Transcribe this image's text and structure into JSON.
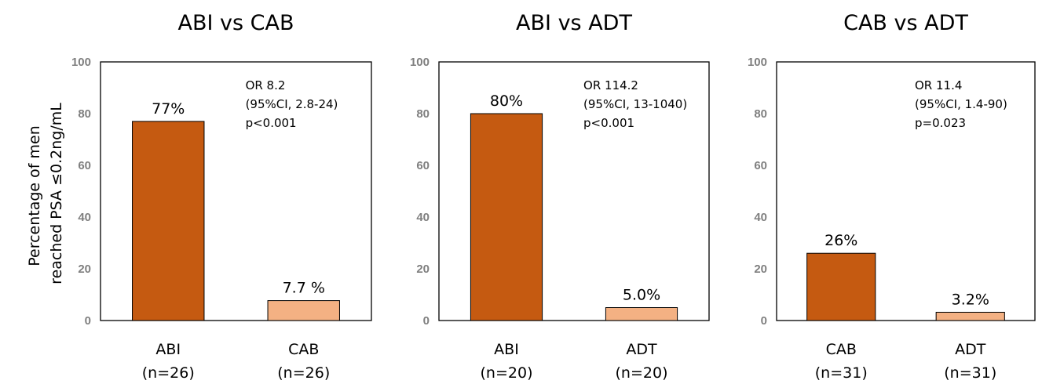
{
  "y_axis_label": [
    "Percentage of men",
    "reached PSA ≤0.2ng/mL"
  ],
  "chart_data": [
    {
      "type": "bar",
      "title": "ABI vs CAB",
      "categories": [
        "ABI",
        "CAB"
      ],
      "category_n": [
        "(n=26)",
        "(n=26)"
      ],
      "values": [
        77,
        7.7
      ],
      "data_labels": [
        "77%",
        "7.7 %"
      ],
      "colors": [
        "#c55a11",
        "#f4b183"
      ],
      "ylim": [
        0,
        100
      ],
      "yticks": [
        0,
        20,
        40,
        60,
        80,
        100
      ],
      "annotation": [
        "OR 8.2",
        "(95%CI, 2.8-24)",
        "p<0.001"
      ]
    },
    {
      "type": "bar",
      "title": "ABI vs ADT",
      "categories": [
        "ABI",
        "ADT"
      ],
      "category_n": [
        "(n=20)",
        "(n=20)"
      ],
      "values": [
        80,
        5.0
      ],
      "data_labels": [
        "80%",
        "5.0%"
      ],
      "colors": [
        "#c55a11",
        "#f4b183"
      ],
      "ylim": [
        0,
        100
      ],
      "yticks": [
        0,
        20,
        40,
        60,
        80,
        100
      ],
      "annotation": [
        "OR 114.2",
        "(95%CI, 13-1040)",
        "p<0.001"
      ]
    },
    {
      "type": "bar",
      "title": "CAB vs ADT",
      "categories": [
        "CAB",
        "ADT"
      ],
      "category_n": [
        "(n=31)",
        "(n=31)"
      ],
      "values": [
        26,
        3.2
      ],
      "data_labels": [
        "26%",
        "3.2%"
      ],
      "colors": [
        "#c55a11",
        "#f4b183"
      ],
      "ylim": [
        0,
        100
      ],
      "yticks": [
        0,
        20,
        40,
        60,
        80,
        100
      ],
      "annotation": [
        "OR 11.4",
        "(95%CI, 1.4-90)",
        "p=0.023"
      ]
    }
  ]
}
